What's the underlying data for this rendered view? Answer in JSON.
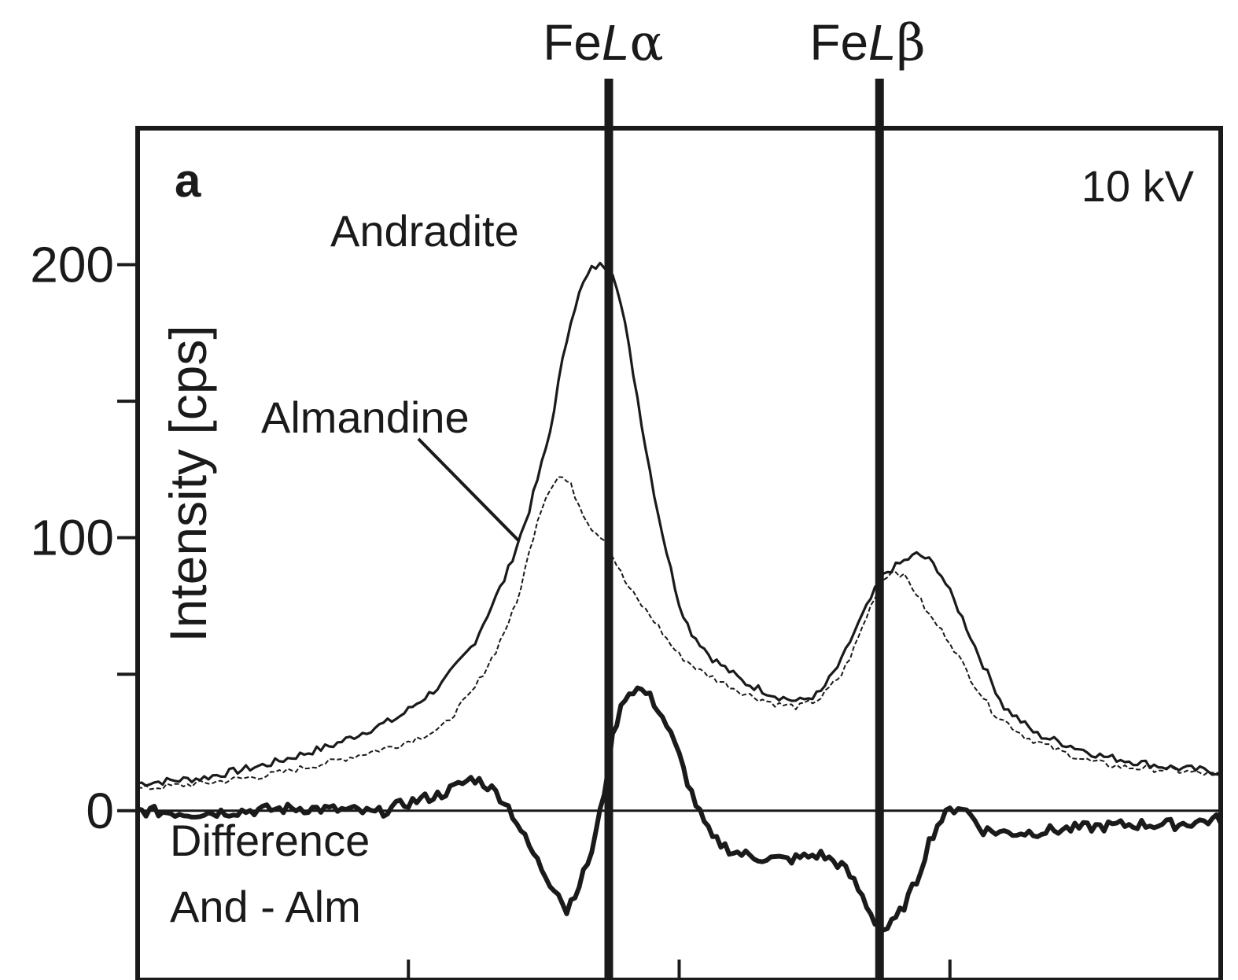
{
  "chart_data": {
    "type": "line",
    "panel_label": "a",
    "voltage_label": "10 kV",
    "ylabel": "Intensity  [cps]",
    "xlabel": "",
    "ylim": [
      -62,
      250
    ],
    "xlim": [
      0,
      100
    ],
    "y_ticks": [
      {
        "value": 200,
        "label": "200"
      },
      {
        "value": 150,
        "label": ""
      },
      {
        "value": 100,
        "label": "100"
      },
      {
        "value": 50,
        "label": ""
      },
      {
        "value": 0,
        "label": "0"
      }
    ],
    "x_ticks": [
      0,
      25,
      50,
      75,
      100
    ],
    "peak_lines": [
      {
        "label_main": "Fe",
        "label_italic": "L",
        "label_greek": "α",
        "x": 43.5
      },
      {
        "label_main": "Fe",
        "label_italic": "L",
        "label_greek": "β",
        "x": 68.5
      }
    ],
    "zero_line": 0,
    "series": [
      {
        "name": "Andradite",
        "style": "solid",
        "points": [
          [
            0,
            10
          ],
          [
            6,
            12
          ],
          [
            12,
            17
          ],
          [
            18,
            24
          ],
          [
            24,
            34
          ],
          [
            28,
            46
          ],
          [
            31,
            61
          ],
          [
            34,
            86
          ],
          [
            36,
            108
          ],
          [
            38,
            137
          ],
          [
            39,
            160
          ],
          [
            40,
            180
          ],
          [
            41,
            192
          ],
          [
            42,
            199
          ],
          [
            43,
            200
          ],
          [
            44,
            197
          ],
          [
            45,
            178
          ],
          [
            46,
            155
          ],
          [
            47,
            131
          ],
          [
            48,
            110
          ],
          [
            49,
            92
          ],
          [
            50,
            76
          ],
          [
            51,
            66
          ],
          [
            53,
            56
          ],
          [
            56,
            47
          ],
          [
            59,
            42
          ],
          [
            61,
            40
          ],
          [
            63,
            43
          ],
          [
            65,
            55
          ],
          [
            66,
            64
          ],
          [
            67,
            72
          ],
          [
            68,
            80
          ],
          [
            69,
            87
          ],
          [
            71,
            92
          ],
          [
            72,
            94
          ],
          [
            73,
            92
          ],
          [
            74,
            88
          ],
          [
            75,
            80
          ],
          [
            76,
            72
          ],
          [
            78,
            54
          ],
          [
            80,
            38
          ],
          [
            83,
            28
          ],
          [
            86,
            24
          ],
          [
            89,
            20
          ],
          [
            92,
            18
          ],
          [
            95,
            16
          ],
          [
            98,
            15
          ],
          [
            100,
            14
          ]
        ]
      },
      {
        "name": "Almandine",
        "style": "dashed",
        "points": [
          [
            0,
            8
          ],
          [
            6,
            10
          ],
          [
            12,
            13
          ],
          [
            18,
            18
          ],
          [
            24,
            24
          ],
          [
            28,
            30
          ],
          [
            31,
            44
          ],
          [
            33,
            58
          ],
          [
            35,
            76
          ],
          [
            36,
            92
          ],
          [
            37,
            108
          ],
          [
            38,
            118
          ],
          [
            39,
            123
          ],
          [
            40,
            119
          ],
          [
            41,
            110
          ],
          [
            42,
            103
          ],
          [
            43,
            100
          ],
          [
            44,
            92
          ],
          [
            45,
            84
          ],
          [
            46,
            78
          ],
          [
            47,
            73
          ],
          [
            48,
            68
          ],
          [
            49,
            62
          ],
          [
            50,
            57
          ],
          [
            52,
            51
          ],
          [
            54,
            47
          ],
          [
            56,
            43
          ],
          [
            59,
            39
          ],
          [
            61,
            38
          ],
          [
            63,
            41
          ],
          [
            65,
            50
          ],
          [
            66,
            58
          ],
          [
            67,
            68
          ],
          [
            68,
            78
          ],
          [
            69,
            86
          ],
          [
            70,
            88
          ],
          [
            71,
            85
          ],
          [
            72,
            79
          ],
          [
            73,
            72
          ],
          [
            75,
            62
          ],
          [
            77,
            48
          ],
          [
            79,
            36
          ],
          [
            82,
            27
          ],
          [
            85,
            22
          ],
          [
            88,
            18
          ],
          [
            91,
            16
          ],
          [
            95,
            15
          ],
          [
            100,
            13
          ]
        ]
      },
      {
        "name": "Difference And - Alm",
        "label_line1": "Difference",
        "label_line2": "And - Alm",
        "style": "bold",
        "points": [
          [
            0,
            0
          ],
          [
            5,
            -1
          ],
          [
            10,
            0
          ],
          [
            15,
            1
          ],
          [
            20,
            0
          ],
          [
            22,
            -1
          ],
          [
            25,
            3
          ],
          [
            28,
            6
          ],
          [
            30,
            10
          ],
          [
            31,
            12
          ],
          [
            32,
            10
          ],
          [
            33,
            7
          ],
          [
            34,
            3
          ],
          [
            35,
            -4
          ],
          [
            36,
            -12
          ],
          [
            37,
            -19
          ],
          [
            38,
            -26
          ],
          [
            39,
            -30
          ],
          [
            39.5,
            -38
          ],
          [
            40,
            -33
          ],
          [
            41,
            -25
          ],
          [
            42,
            -14
          ],
          [
            43,
            5
          ],
          [
            43.5,
            18
          ],
          [
            44,
            30
          ],
          [
            45,
            42
          ],
          [
            46,
            45
          ],
          [
            47,
            43
          ],
          [
            48,
            38
          ],
          [
            49,
            30
          ],
          [
            50,
            20
          ],
          [
            51,
            8
          ],
          [
            52,
            -2
          ],
          [
            53,
            -10
          ],
          [
            55,
            -15
          ],
          [
            57,
            -17
          ],
          [
            60,
            -18
          ],
          [
            63,
            -16
          ],
          [
            65,
            -20
          ],
          [
            66,
            -25
          ],
          [
            67,
            -32
          ],
          [
            68,
            -40
          ],
          [
            69,
            -44
          ],
          [
            70,
            -40
          ],
          [
            71,
            -33
          ],
          [
            72,
            -25
          ],
          [
            73,
            -12
          ],
          [
            74,
            -4
          ],
          [
            75,
            0
          ],
          [
            76,
            2
          ],
          [
            77,
            -2
          ],
          [
            78,
            -7
          ],
          [
            80,
            -8
          ],
          [
            82,
            -8
          ],
          [
            85,
            -7
          ],
          [
            88,
            -6
          ],
          [
            92,
            -5
          ],
          [
            96,
            -5
          ],
          [
            100,
            -3
          ]
        ]
      }
    ],
    "annotations": [
      {
        "text": "Andradite",
        "target_series": 0
      },
      {
        "text": "Almandine",
        "target_series": 1
      }
    ]
  }
}
